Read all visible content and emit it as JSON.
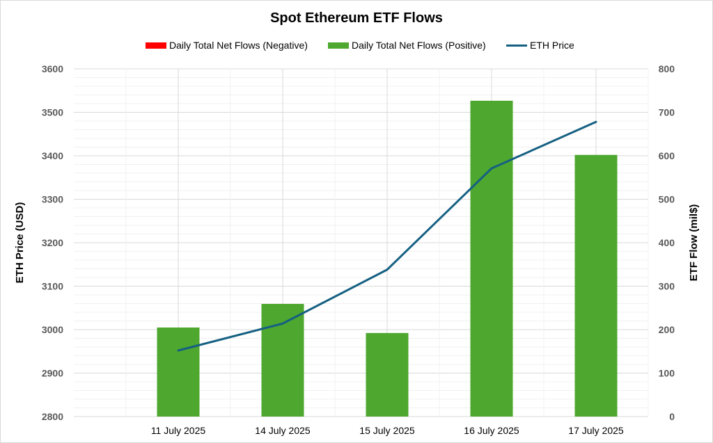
{
  "chart_data": {
    "type": "bar",
    "title": "Spot Ethereum ETF Flows",
    "categories": [
      "11 July 2025",
      "14 July 2025",
      "15 July 2025",
      "16 July 2025",
      "17 July 2025"
    ],
    "series": [
      {
        "name": "Daily Total Net Flows (Negative)",
        "type": "bar",
        "axis": "right",
        "color": "#ff0000",
        "values": [
          0,
          0,
          0,
          0,
          0
        ]
      },
      {
        "name": "Daily Total Net Flows (Positive)",
        "type": "bar",
        "axis": "right",
        "color": "#4ea72e",
        "values": [
          204.9,
          259.2,
          192.3,
          726.6,
          602.0
        ]
      },
      {
        "name": "ETH Price",
        "type": "line",
        "axis": "left",
        "color": "#156082",
        "values": [
          2952,
          3014,
          3138,
          3371,
          3478
        ]
      }
    ],
    "ylabel_left": "ETH Price (USD)",
    "ylabel_right": "ETF  Flow (mil$)",
    "ylim_left": [
      2800,
      3600
    ],
    "yticks_left": [
      "3600",
      "3500",
      "3400",
      "3300",
      "3200",
      "3100",
      "3000",
      "2900",
      "2800"
    ],
    "ylim_right": [
      0,
      800
    ],
    "yticks_right": [
      "800",
      "700",
      "600",
      "500",
      "400",
      "300",
      "200",
      "100",
      "0"
    ],
    "legend_position": "top",
    "grid": true
  }
}
